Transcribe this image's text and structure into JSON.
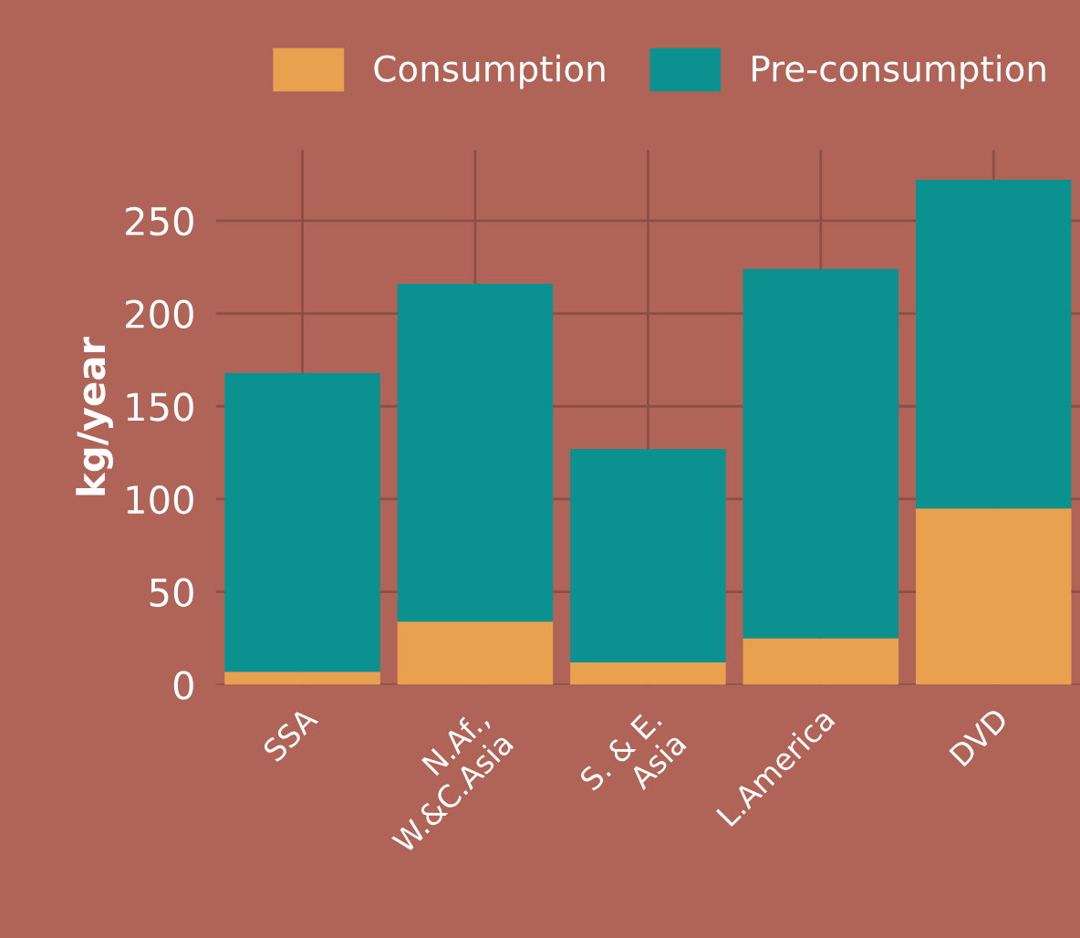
{
  "chart_data": {
    "type": "bar",
    "stacked": true,
    "ylabel": "kg/year",
    "categories": [
      "SSA",
      "N.Af.,\nW.&C.Asia",
      "S. & E.\nAsia",
      "L.America",
      "DVD"
    ],
    "series": [
      {
        "name": "Consumption",
        "color": "#e8a24f",
        "values": [
          7,
          34,
          12,
          25,
          95
        ]
      },
      {
        "name": "Pre-consumption",
        "color": "#0b9290",
        "values": [
          161,
          182,
          115,
          199,
          177
        ]
      }
    ],
    "ylim": [
      0,
      288
    ],
    "yticks": [
      0,
      50,
      100,
      150,
      200,
      250
    ],
    "grid": true,
    "legend": "top right"
  }
}
